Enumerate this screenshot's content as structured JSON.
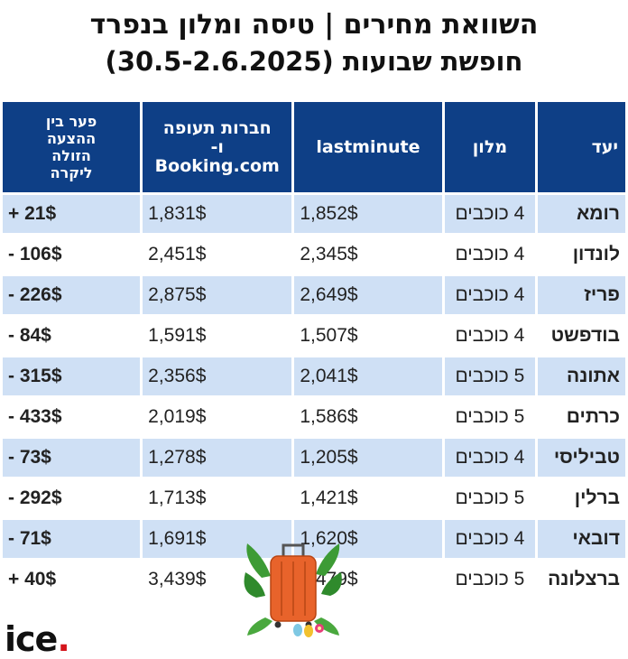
{
  "title": {
    "line1": "השוואת מחירים | טיסה ומלון בנפרד",
    "line2": "חופשת שבועות (30.5-2.6.2025)"
  },
  "table": {
    "headers": {
      "destination": "יעד",
      "hotel": "מלון",
      "lastminute": "lastminute",
      "booking_line1": "חברות תעופה",
      "booking_line2": "ו- Booking.com",
      "gap_line1": "פער בין",
      "gap_line2": "ההצעה",
      "gap_line3": "הזולה",
      "gap_line4": "ליקרה"
    },
    "rows": [
      {
        "destination": "רומא",
        "hotel": "4 כוכבים",
        "lastminute": "1,852$",
        "booking": "1,831$",
        "gap": "+ 21$"
      },
      {
        "destination": "לונדון",
        "hotel": "4 כוכבים",
        "lastminute": "2,345$",
        "booking": "2,451$",
        "gap": "- 106$"
      },
      {
        "destination": "פריז",
        "hotel": "4 כוכבים",
        "lastminute": "2,649$",
        "booking": "2,875$",
        "gap": "- 226$"
      },
      {
        "destination": "בודפשט",
        "hotel": "4 כוכבים",
        "lastminute": "1,507$",
        "booking": "1,591$",
        "gap": "- 84$"
      },
      {
        "destination": "אתונה",
        "hotel": "5 כוכבים",
        "lastminute": "2,041$",
        "booking": "2,356$",
        "gap": "- 315$"
      },
      {
        "destination": "כרתים",
        "hotel": "5 כוכבים",
        "lastminute": "1,586$",
        "booking": "2,019$",
        "gap": "- 433$"
      },
      {
        "destination": "טביליסי",
        "hotel": "4 כוכבים",
        "lastminute": "1,205$",
        "booking": "1,278$",
        "gap": "- 73$"
      },
      {
        "destination": "ברלין",
        "hotel": "5 כוכבים",
        "lastminute": "1,421$",
        "booking": "1,713$",
        "gap": "- 292$"
      },
      {
        "destination": "דובאי",
        "hotel": "4 כוכבים",
        "lastminute": "1,620$",
        "booking": "1,691$",
        "gap": "- 71$"
      },
      {
        "destination": "ברצלונה",
        "hotel": "5 כוכבים",
        "lastminute": "3,479$",
        "booking": "3,439$",
        "gap": "+ 40$"
      }
    ]
  },
  "logo": {
    "text": "ice",
    "dot": "."
  },
  "colors": {
    "header_bg": "#0e3f86",
    "row_tint": "#cfe0f5",
    "logo_dot": "#d4141b"
  },
  "decoration": {
    "icon": "suitcase-with-palm-leaves-icon"
  }
}
